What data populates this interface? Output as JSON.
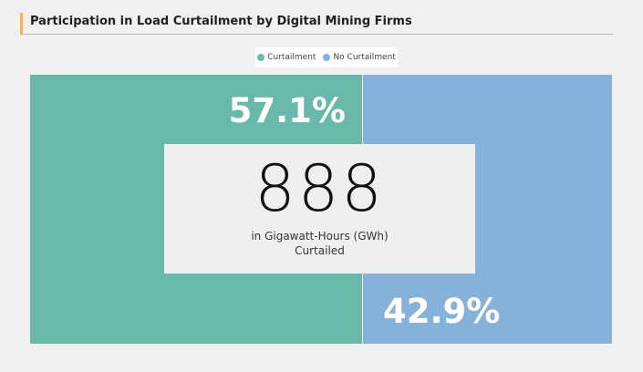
{
  "header": {
    "title": "Participation in Load Curtailment by Digital Mining Firms"
  },
  "callout": {
    "value": "888",
    "unit_line1": "in Gigawatt-Hours (GWh)",
    "unit_line2": "Curtailed"
  },
  "colors": {
    "curtailment": "#69b9aa",
    "no_curtailment": "#86b2d9"
  },
  "chart_data": {
    "type": "bar",
    "stacked": true,
    "orientation": "horizontal",
    "title": "Participation in Load Curtailment by Digital Mining Firms",
    "legend_position": "top-center",
    "series": [
      {
        "name": "Curtailment",
        "value": 57.1,
        "label": "57.1%"
      },
      {
        "name": "No Curtailment",
        "value": 42.9,
        "label": "42.9%"
      }
    ]
  }
}
